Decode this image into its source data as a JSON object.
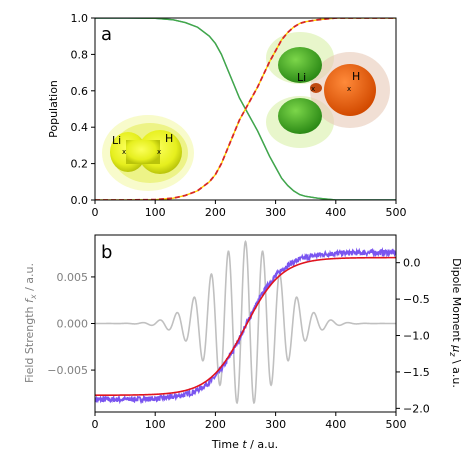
{
  "chart_data": [
    {
      "panel": "a",
      "type": "line",
      "ylabel": "Population",
      "xlim": [
        0,
        500
      ],
      "ylim": [
        0,
        1
      ],
      "xticks": [
        0,
        100,
        200,
        300,
        400,
        500
      ],
      "yticks": [
        0.0,
        0.2,
        0.4,
        0.6,
        0.8,
        1.0
      ],
      "yticklabels": [
        "0.0",
        "0.2",
        "0.4",
        "0.6",
        "0.8",
        "1.0"
      ],
      "grid": false,
      "series": [
        {
          "color": "#3a7fbf",
          "style": "solid",
          "x": [
            0,
            50,
            100,
            130,
            150,
            170,
            190,
            200,
            210,
            220,
            230,
            240,
            250,
            260,
            270,
            280,
            290,
            300,
            310,
            320,
            330,
            340,
            350,
            370,
            400,
            450,
            500
          ],
          "y": [
            1.0,
            1.0,
            0.998,
            0.99,
            0.975,
            0.95,
            0.9,
            0.86,
            0.8,
            0.72,
            0.64,
            0.56,
            0.5,
            0.44,
            0.38,
            0.31,
            0.24,
            0.18,
            0.12,
            0.08,
            0.05,
            0.03,
            0.02,
            0.01,
            0.0,
            0.0,
            0.0
          ]
        },
        {
          "color": "#44aa44",
          "style": "solid",
          "x": [
            0,
            50,
            100,
            130,
            150,
            170,
            190,
            200,
            210,
            220,
            230,
            240,
            250,
            260,
            270,
            280,
            290,
            300,
            310,
            320,
            330,
            340,
            350,
            370,
            400,
            450,
            500
          ],
          "y": [
            1.0,
            1.0,
            0.998,
            0.99,
            0.975,
            0.95,
            0.9,
            0.86,
            0.8,
            0.72,
            0.64,
            0.56,
            0.5,
            0.44,
            0.38,
            0.31,
            0.24,
            0.18,
            0.12,
            0.08,
            0.05,
            0.03,
            0.02,
            0.01,
            0.0,
            0.0,
            0.0
          ]
        },
        {
          "color": "#ffd400",
          "style": "solid",
          "x": [
            0,
            50,
            100,
            130,
            150,
            170,
            190,
            200,
            210,
            220,
            230,
            240,
            250,
            260,
            270,
            280,
            290,
            300,
            310,
            320,
            330,
            340,
            350,
            370,
            400,
            450,
            500
          ],
          "y": [
            0.0,
            0.0,
            0.002,
            0.01,
            0.025,
            0.05,
            0.1,
            0.14,
            0.2,
            0.28,
            0.36,
            0.44,
            0.5,
            0.56,
            0.62,
            0.69,
            0.76,
            0.82,
            0.88,
            0.92,
            0.95,
            0.97,
            0.98,
            0.99,
            1.0,
            1.0,
            1.0
          ]
        },
        {
          "color": "#d62728",
          "style": "dashed",
          "x": [
            0,
            50,
            100,
            130,
            150,
            170,
            190,
            200,
            210,
            220,
            230,
            240,
            250,
            260,
            270,
            280,
            290,
            300,
            310,
            320,
            330,
            340,
            350,
            370,
            400,
            450,
            500
          ],
          "y": [
            0.0,
            0.0,
            0.002,
            0.01,
            0.025,
            0.05,
            0.1,
            0.14,
            0.2,
            0.28,
            0.36,
            0.44,
            0.5,
            0.56,
            0.62,
            0.69,
            0.76,
            0.82,
            0.88,
            0.92,
            0.95,
            0.97,
            0.98,
            0.99,
            1.0,
            1.0,
            1.0
          ]
        }
      ],
      "annotations": {
        "lih_left": "Li",
        "lih_right": "H",
        "li_h_left": "Li",
        "li_h_right": "H"
      }
    },
    {
      "panel": "b",
      "type": "line",
      "xlabel": "Time t / a.u.",
      "ylabel_left": "Field Strength f_x / a.u.",
      "ylabel_right": "Dipole Moment μ_z \\ a.u.",
      "xlim": [
        0,
        500
      ],
      "ylim_left": [
        -0.0095,
        0.0095
      ],
      "ylim_right": [
        -2.05,
        0.38
      ],
      "xticks": [
        0,
        100,
        200,
        300,
        400,
        500
      ],
      "yticks_left": [
        -0.005,
        0.0,
        0.005
      ],
      "yticklabels_left": [
        "−0.005",
        "0.000",
        "0.005"
      ],
      "yticks_right": [
        -2.0,
        -1.5,
        -1.0,
        -0.5,
        0.0
      ],
      "yticklabels_right": [
        "−2.0",
        "−1.5",
        "−1.0",
        "−0.5",
        "0.0"
      ],
      "grid": false,
      "field": {
        "color": "#c0c0c0",
        "axis": "left",
        "amplitude": 0.0088,
        "center": 250,
        "sigma": 80,
        "period": 28.5,
        "tmin": 0,
        "tmax": 500
      },
      "dipole_sim": {
        "color": "#7a55f0",
        "axis": "right",
        "low": -1.88,
        "high": 0.14,
        "center": 250,
        "width": 30,
        "noise": 0.035
      },
      "dipole_fit": {
        "color": "#e0141e",
        "axis": "right",
        "low": -1.82,
        "high": 0.07,
        "center": 250,
        "width": 30
      }
    }
  ],
  "labels": {
    "panel_a": "a",
    "panel_b": "b",
    "a_ylabel": "Population",
    "b_xlabel_prefix": "Time ",
    "b_xlabel_var": "t",
    "b_xlabel_suffix": " / a.u.",
    "b_ylabel_left_prefix": "Field Strength ",
    "b_ylabel_left_var": "f",
    "b_ylabel_left_sub": "x",
    "b_ylabel_left_suffix": " / a.u.",
    "b_ylabel_right_prefix": "Dipole Moment ",
    "b_ylabel_right_var": "μ",
    "b_ylabel_right_sub": "z",
    "b_ylabel_right_suffix": " \\ a.u."
  },
  "colors": {
    "field_axis_text": "#808080",
    "text": "#000000"
  }
}
